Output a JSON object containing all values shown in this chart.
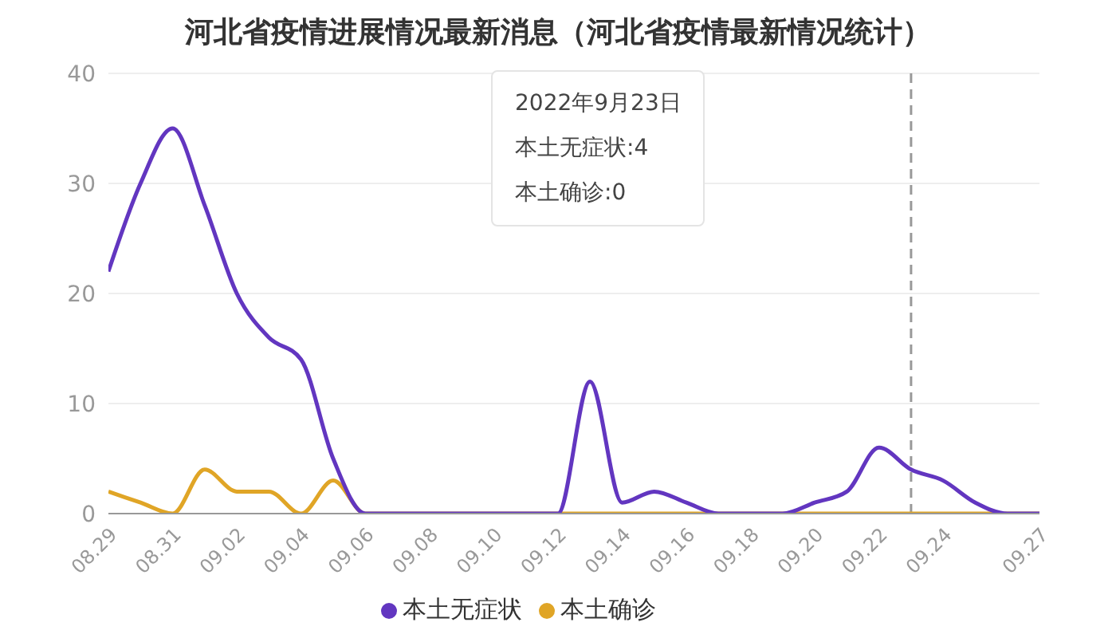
{
  "chart_data": {
    "type": "line",
    "title": "河北省疫情进展情况最新消息（河北省疫情最新情况统计）",
    "x": [
      "2022-08-29",
      "2022-08-30",
      "2022-08-31",
      "2022-09-01",
      "2022-09-02",
      "2022-09-03",
      "2022-09-04",
      "2022-09-05",
      "2022-09-06",
      "2022-09-07",
      "2022-09-08",
      "2022-09-09",
      "2022-09-10",
      "2022-09-11",
      "2022-09-12",
      "2022-09-13",
      "2022-09-14",
      "2022-09-15",
      "2022-09-16",
      "2022-09-17",
      "2022-09-18",
      "2022-09-19",
      "2022-09-20",
      "2022-09-21",
      "2022-09-22",
      "2022-09-23",
      "2022-09-24",
      "2022-09-25",
      "2022-09-26",
      "2022-09-27"
    ],
    "series": [
      {
        "name": "本土确诊",
        "color": "#e0a526",
        "values": [
          2,
          1,
          0,
          4,
          2,
          2,
          0,
          3,
          0,
          0,
          0,
          0,
          0,
          0,
          0,
          0,
          0,
          0,
          0,
          0,
          0,
          0,
          0,
          0,
          0,
          0,
          0,
          0,
          0,
          0
        ]
      },
      {
        "name": "本土无症状",
        "color": "#6236c0",
        "values": [
          22,
          30,
          35,
          28,
          20,
          16,
          14,
          5,
          0,
          0,
          0,
          0,
          0,
          0,
          0,
          12,
          1,
          2,
          1,
          0,
          0,
          0,
          1,
          2,
          6,
          4,
          3,
          1,
          0,
          0
        ]
      }
    ],
    "xlim": [
      "2022-08-29",
      "2022-09-27"
    ],
    "xticks": [
      {
        "value": "2022-08-29",
        "label": "08.29"
      },
      {
        "value": "2022-08-31",
        "label": "08.31"
      },
      {
        "value": "2022-09-02",
        "label": "09.02"
      },
      {
        "value": "2022-09-04",
        "label": "09.04"
      },
      {
        "value": "2022-09-06",
        "label": "09.06"
      },
      {
        "value": "2022-09-08",
        "label": "09.08"
      },
      {
        "value": "2022-09-10",
        "label": "09.10"
      },
      {
        "value": "2022-09-12",
        "label": "09.12"
      },
      {
        "value": "2022-09-14",
        "label": "09.14"
      },
      {
        "value": "2022-09-16",
        "label": "09.16"
      },
      {
        "value": "2022-09-18",
        "label": "09.18"
      },
      {
        "value": "2022-09-20",
        "label": "09.20"
      },
      {
        "value": "2022-09-22",
        "label": "09.22"
      },
      {
        "value": "2022-09-24",
        "label": "09.24"
      },
      {
        "value": "2022-09-27",
        "label": "09.27"
      }
    ],
    "ylim": [
      0,
      40
    ],
    "yticks": [
      0,
      10,
      20,
      30,
      40
    ],
    "grid": "y",
    "legend": "bottom",
    "marker": "none",
    "line_style": "solid",
    "ref_lines": [
      {
        "axis": "x",
        "value": "2022-09-23",
        "color": "#999999",
        "line_style": "dashed"
      }
    ],
    "annotations": [
      "2022年9月23日",
      "本土无症状:4",
      "本土确诊:0"
    ]
  }
}
